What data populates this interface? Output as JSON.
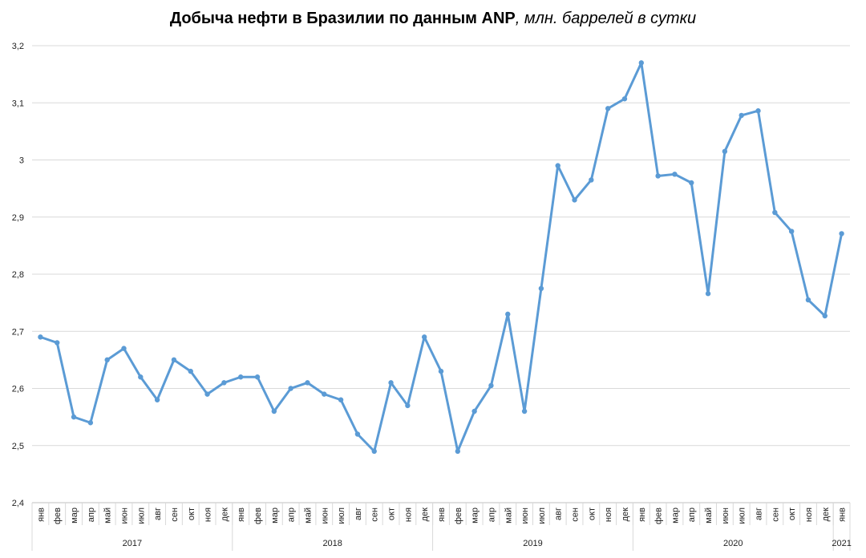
{
  "chart_data": {
    "type": "line",
    "title": "Добыча нефти в Бразилии по данным ANP",
    "title_suffix": ", млн. баррелей в сутки",
    "xlabel": "",
    "ylabel": "",
    "ylim": [
      2.4,
      3.2
    ],
    "yticks": [
      2.4,
      2.5,
      2.6,
      2.7,
      2.8,
      2.9,
      3.0,
      3.1,
      3.2
    ],
    "ytick_labels": [
      "2,4",
      "2,5",
      "2,6",
      "2,7",
      "2,8",
      "2,9",
      "3",
      "3,1",
      "3,2"
    ],
    "grid": true,
    "legend": "none",
    "line_color": "#5b9bd5",
    "months": [
      "янв",
      "фев",
      "мар",
      "апр",
      "май",
      "июн",
      "июл",
      "авг",
      "сен",
      "окт",
      "ноя",
      "дек",
      "янв",
      "фев",
      "мар",
      "апр",
      "май",
      "июн",
      "июл",
      "авг",
      "сен",
      "окт",
      "ноя",
      "дек",
      "янв",
      "фев",
      "мар",
      "апр",
      "май",
      "июн",
      "июл",
      "авг",
      "сен",
      "окт",
      "ноя",
      "дек",
      "янв",
      "фев",
      "мар",
      "апр",
      "май",
      "июн",
      "июл",
      "авг",
      "сен",
      "окт",
      "ноя",
      "дек",
      "янв"
    ],
    "years": [
      {
        "label": "2017",
        "count": 12
      },
      {
        "label": "2018",
        "count": 12
      },
      {
        "label": "2019",
        "count": 12
      },
      {
        "label": "2020",
        "count": 12
      },
      {
        "label": "2021",
        "count": 1
      }
    ],
    "values": [
      2.69,
      2.68,
      2.55,
      2.54,
      2.65,
      2.67,
      2.62,
      2.58,
      2.65,
      2.63,
      2.59,
      2.61,
      2.62,
      2.62,
      2.56,
      2.6,
      2.61,
      2.59,
      2.58,
      2.52,
      2.49,
      2.61,
      2.57,
      2.69,
      2.63,
      2.49,
      2.56,
      2.605,
      2.73,
      2.56,
      2.775,
      2.99,
      2.93,
      2.965,
      3.09,
      3.107,
      3.17,
      2.972,
      2.975,
      2.96,
      2.766,
      3.015,
      3.078,
      3.086,
      2.908,
      2.875,
      2.755,
      2.727,
      2.871
    ]
  }
}
